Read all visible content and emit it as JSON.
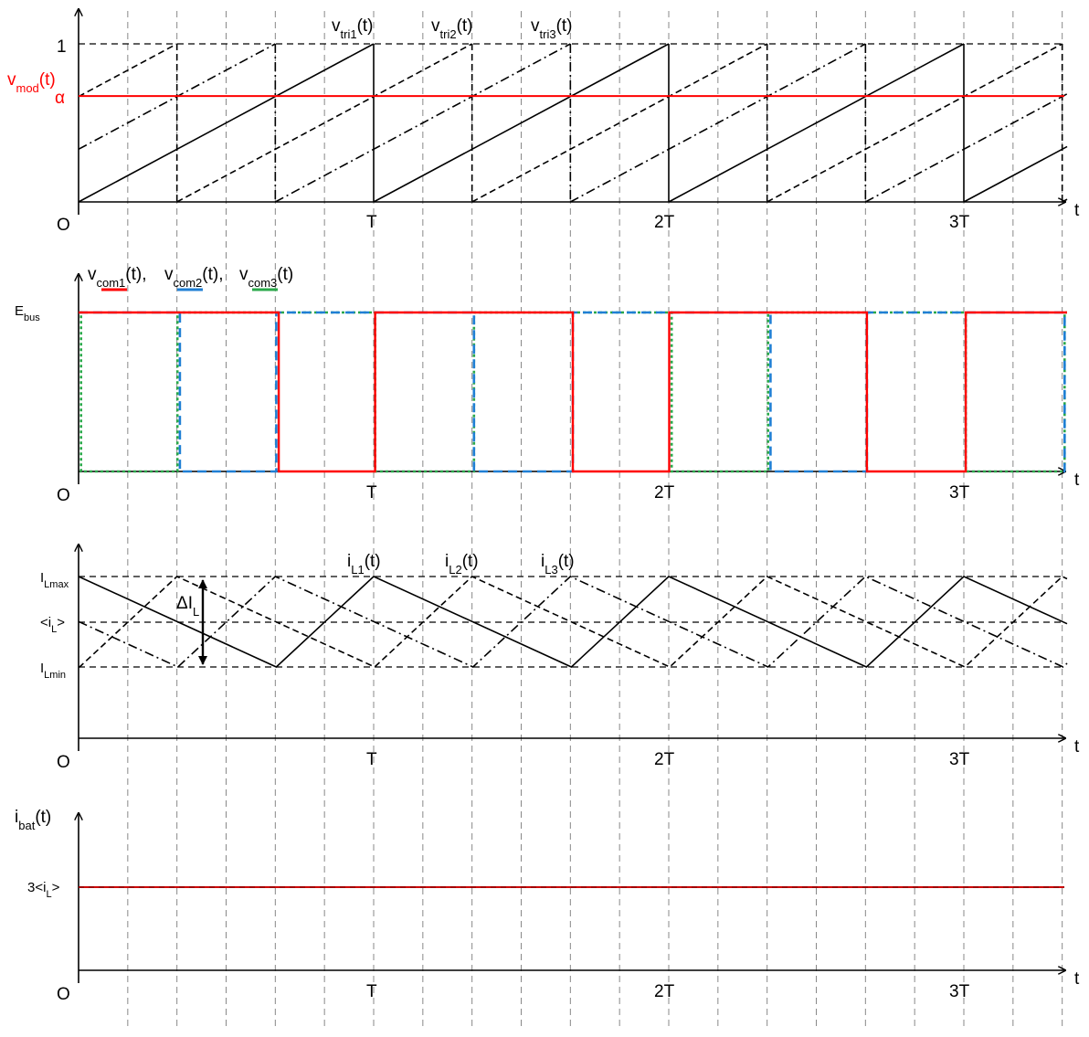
{
  "colors": {
    "com1": "#ff0000",
    "com2": "#1f7fd4",
    "com3": "#2aa84a",
    "mod": "#ff0000",
    "axis": "#000000",
    "grid": "#888888"
  },
  "common": {
    "origin": "O",
    "t": "t",
    "T1": "T",
    "T2": "2T",
    "T3": "3T"
  },
  "panel1": {
    "one": "1",
    "vmod": {
      "base": "v",
      "sub": "mod",
      "tail": "(t)"
    },
    "alpha": "α",
    "alpha_value": 0.67,
    "tri1": {
      "base": "v",
      "sub": "tri1",
      "tail": "(t)"
    },
    "tri2": {
      "base": "v",
      "sub": "tri2",
      "tail": "(t)"
    },
    "tri3": {
      "base": "v",
      "sub": "tri3",
      "tail": "(t)"
    }
  },
  "panel2": {
    "ebus": {
      "base": "E",
      "sub": "bus"
    },
    "legend": {
      "v1": {
        "base": "v",
        "sub": "com1",
        "tail": "(t),"
      },
      "v2": {
        "base": "v",
        "sub": "com2",
        "tail": "(t),"
      },
      "v3": {
        "base": "v",
        "sub": "com3",
        "tail": "(t)"
      }
    }
  },
  "panel3": {
    "ilmax": {
      "base": "I",
      "sub": "Lmax"
    },
    "ilavg": {
      "base": "<i",
      "sub": "L",
      "tail": ">"
    },
    "ilmin": {
      "base": "I",
      "sub": "Lmin"
    },
    "delta": {
      "base": "ΔI",
      "sub": "L"
    },
    "il1": {
      "base": "i",
      "sub": "L1",
      "tail": "(t)"
    },
    "il2": {
      "base": "i",
      "sub": "L2",
      "tail": "(t)"
    },
    "il3": {
      "base": "i",
      "sub": "L3",
      "tail": "(t)"
    }
  },
  "panel4": {
    "ibat": {
      "base": "i",
      "sub": "bat",
      "tail": "(t)"
    },
    "level": {
      "base": "3<i",
      "sub": "L",
      "tail": ">"
    }
  }
}
